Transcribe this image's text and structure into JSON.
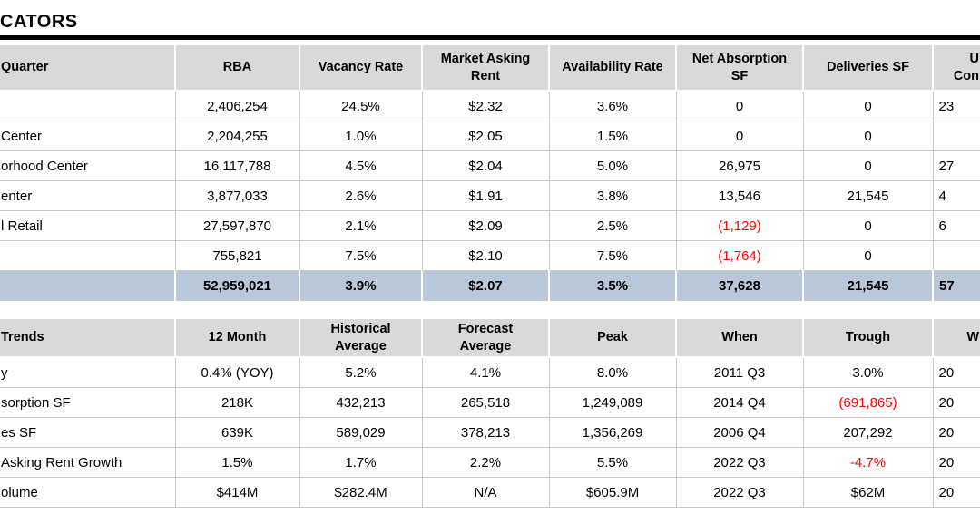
{
  "page_title_fragment": "CATORS",
  "colors": {
    "header_bg": "#d9d9d9",
    "total_row_bg": "#b9c8d8",
    "negative_value": "#ff0000",
    "title_rule": "#000000"
  },
  "key_indicators_table": {
    "columns": [
      {
        "label": "Quarter",
        "align": "left"
      },
      {
        "label": "RBA"
      },
      {
        "label": "Vacancy Rate"
      },
      {
        "label": "Market Asking\nRent"
      },
      {
        "label": "Availability Rate"
      },
      {
        "label": "Net Absorption\nSF"
      },
      {
        "label": "Deliveries SF"
      },
      {
        "label": "U\nCon",
        "align": "right",
        "clipped": true
      }
    ],
    "rows": [
      {
        "cells": [
          "",
          "2,406,254",
          "24.5%",
          "$2.32",
          "3.6%",
          "0",
          "0",
          "23"
        ]
      },
      {
        "cells": [
          "Center",
          "2,204,255",
          "1.0%",
          "$2.05",
          "1.5%",
          "0",
          "0",
          ""
        ]
      },
      {
        "cells": [
          "orhood Center",
          "16,117,788",
          "4.5%",
          "$2.04",
          "5.0%",
          "26,975",
          "0",
          "27"
        ]
      },
      {
        "cells": [
          "enter",
          "3,877,033",
          "2.6%",
          "$1.91",
          "3.8%",
          "13,546",
          "21,545",
          "4"
        ]
      },
      {
        "cells": [
          "l Retail",
          "27,597,870",
          "2.1%",
          "$2.09",
          "2.5%",
          {
            "text": "(1,129)",
            "negative": true
          },
          "0",
          "6"
        ]
      },
      {
        "cells": [
          "",
          "755,821",
          "7.5%",
          "$2.10",
          "7.5%",
          {
            "text": "(1,764)",
            "negative": true
          },
          "0",
          ""
        ]
      },
      {
        "cells": [
          "",
          "52,959,021",
          "3.9%",
          "$2.07",
          "3.5%",
          "37,628",
          "21,545",
          "57"
        ],
        "total": true
      }
    ]
  },
  "trends_table": {
    "columns": [
      {
        "label": "Trends",
        "align": "left"
      },
      {
        "label": "12 Month"
      },
      {
        "label": "Historical\nAverage"
      },
      {
        "label": "Forecast\nAverage"
      },
      {
        "label": "Peak"
      },
      {
        "label": "When"
      },
      {
        "label": "Trough"
      },
      {
        "label": "W",
        "align": "right",
        "clipped": true
      }
    ],
    "rows": [
      {
        "cells": [
          "y",
          "0.4% (YOY)",
          "5.2%",
          "4.1%",
          "8.0%",
          "2011 Q3",
          "3.0%",
          "20"
        ]
      },
      {
        "cells": [
          "sorption SF",
          "218K",
          "432,213",
          "265,518",
          "1,249,089",
          "2014 Q4",
          {
            "text": "(691,865)",
            "negative": true
          },
          "20"
        ]
      },
      {
        "cells": [
          "es SF",
          "639K",
          "589,029",
          "378,213",
          "1,356,269",
          "2006 Q4",
          "207,292",
          "20"
        ]
      },
      {
        "cells": [
          "Asking Rent Growth",
          "1.5%",
          "1.7%",
          "2.2%",
          "5.5%",
          "2022 Q3",
          {
            "text": "-4.7%",
            "negative": true
          },
          "20"
        ]
      },
      {
        "cells": [
          "olume",
          "$414M",
          "$282.4M",
          "N/A",
          "$605.9M",
          "2022 Q3",
          "$62M",
          "20"
        ]
      }
    ]
  }
}
